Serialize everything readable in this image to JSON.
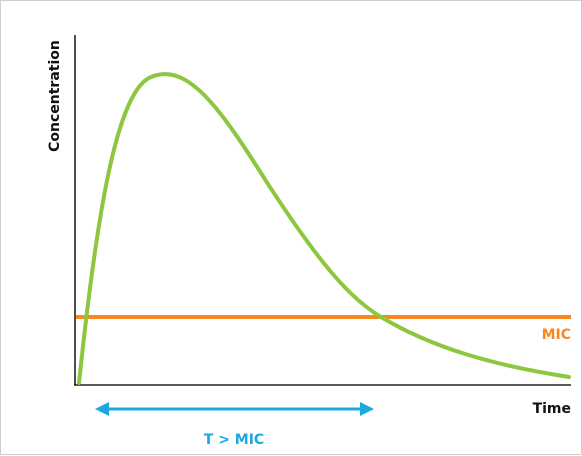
{
  "labels": {
    "y_axis": "Concentration",
    "x_axis": "Time",
    "mic": "MIC",
    "t_above_mic": "T > MIC"
  },
  "colors": {
    "curve": "#8dc63f",
    "mic_line": "#f7891f",
    "t_mic_arrow": "#1ca8e0",
    "axis": "#222222",
    "text": "#111111",
    "border": "#cfcfcf"
  },
  "icons": {
    "arrow": "double-headed-arrow"
  }
}
